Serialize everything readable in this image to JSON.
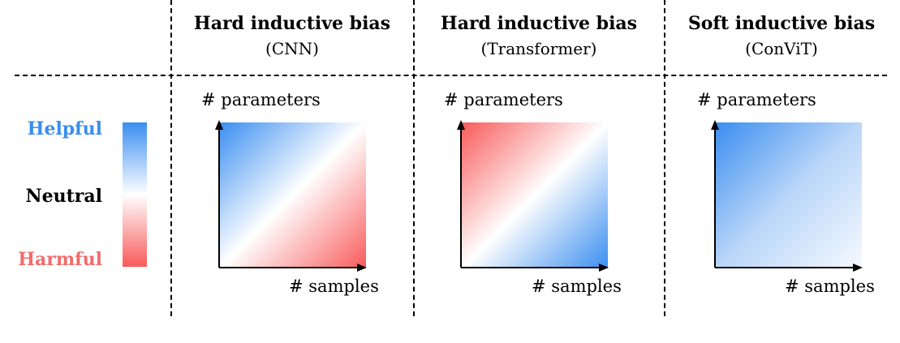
{
  "columns": [
    {
      "title": "Hard inductive bias",
      "subtitle": "(CNN)",
      "x_axis_label": "# samples",
      "y_axis_label": "# parameters"
    },
    {
      "title": "Hard inductive bias",
      "subtitle": "(Transformer)",
      "x_axis_label": "# samples",
      "y_axis_label": "# parameters"
    },
    {
      "title": "Soft inductive bias",
      "subtitle": "(ConViT)",
      "x_axis_label": "# samples",
      "y_axis_label": "# parameters"
    }
  ],
  "legend": {
    "helpful": "Helpful",
    "neutral": "Neutral",
    "harmful": "Harmful"
  },
  "colors": {
    "helpful": "#3a8ef0",
    "harmful": "#f85a5a",
    "neutral": "#ffffff",
    "helpful_label": "#3a8ef0",
    "harmful_label": "#f26b6b",
    "neutral_label": "#000000"
  }
}
